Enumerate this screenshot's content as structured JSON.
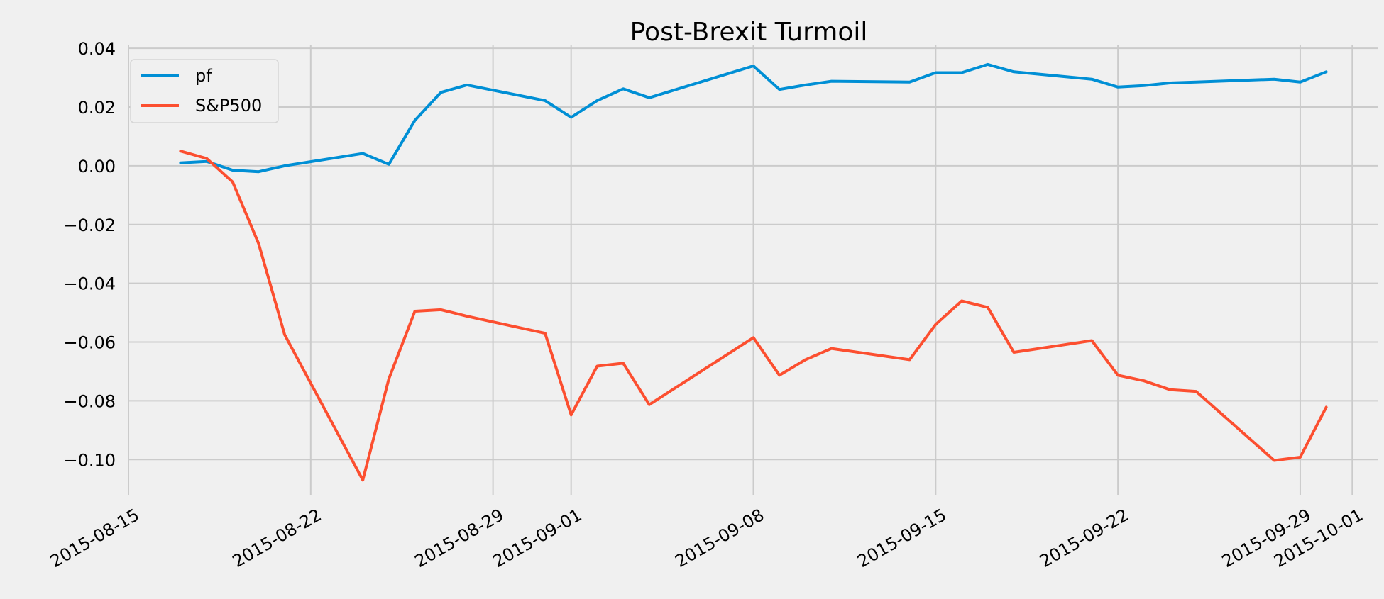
{
  "chart_data": {
    "type": "line",
    "title": "Post-Brexit Turmoil",
    "xlabel": "",
    "ylabel": "",
    "x_type": "date",
    "xlim": [
      "2015-08-15",
      "2015-10-02"
    ],
    "ylim": [
      -0.112,
      0.041
    ],
    "grid": true,
    "legend_position": "top-left",
    "x_ticks": [
      "2015-08-15",
      "2015-08-22",
      "2015-08-29",
      "2015-09-01",
      "2015-09-08",
      "2015-09-15",
      "2015-09-22",
      "2015-09-29",
      "2015-10-01"
    ],
    "y_ticks": [
      0.04,
      0.02,
      0.0,
      -0.02,
      -0.04,
      -0.06,
      -0.08,
      -0.1
    ],
    "y_tick_labels": [
      "0.04",
      "0.02",
      "0.00",
      "−0.02",
      "−0.04",
      "−0.06",
      "−0.08",
      "−0.10"
    ],
    "x": [
      "2015-08-17",
      "2015-08-18",
      "2015-08-19",
      "2015-08-20",
      "2015-08-21",
      "2015-08-24",
      "2015-08-25",
      "2015-08-26",
      "2015-08-27",
      "2015-08-28",
      "2015-08-31",
      "2015-09-01",
      "2015-09-02",
      "2015-09-03",
      "2015-09-04",
      "2015-09-08",
      "2015-09-09",
      "2015-09-10",
      "2015-09-11",
      "2015-09-14",
      "2015-09-15",
      "2015-09-16",
      "2015-09-17",
      "2015-09-18",
      "2015-09-21",
      "2015-09-22",
      "2015-09-23",
      "2015-09-24",
      "2015-09-25",
      "2015-09-28",
      "2015-09-29",
      "2015-09-30"
    ],
    "series": [
      {
        "name": "pf",
        "color": "#008fd5",
        "values": [
          0.001,
          0.0015,
          -0.0015,
          -0.002,
          0.0,
          0.0042,
          0.0005,
          0.0155,
          0.025,
          0.0275,
          0.0222,
          0.0165,
          0.0222,
          0.0262,
          0.0232,
          0.034,
          0.026,
          0.0275,
          0.0288,
          0.0285,
          0.0317,
          0.0317,
          0.0345,
          0.032,
          0.0295,
          0.0268,
          0.0273,
          0.0282,
          0.0285,
          0.0295,
          0.0285,
          0.032
        ]
      },
      {
        "name": "S&P500",
        "color": "#fc4f30",
        "values": [
          0.005,
          0.0025,
          -0.0055,
          -0.0265,
          -0.0575,
          -0.107,
          -0.0725,
          -0.0495,
          -0.049,
          -0.0512,
          -0.057,
          -0.0848,
          -0.0682,
          -0.0672,
          -0.0813,
          -0.0585,
          -0.0713,
          -0.066,
          -0.0622,
          -0.066,
          -0.054,
          -0.046,
          -0.0482,
          -0.0635,
          -0.0595,
          -0.0713,
          -0.0732,
          -0.0762,
          -0.0768,
          -0.1003,
          -0.0992,
          -0.0822
        ]
      }
    ]
  }
}
